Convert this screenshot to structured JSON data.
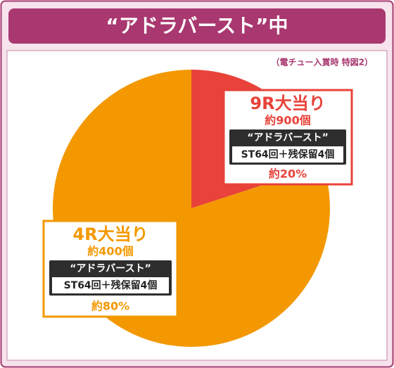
{
  "chart_data": {
    "type": "pie",
    "title": "“アドラバースト”中",
    "subtitle": "（電チュー入賞時 特図2）",
    "categories": [
      "9R大当り",
      "4R大当り"
    ],
    "values": [
      20,
      80
    ],
    "value_labels": [
      "約20%",
      "約80%"
    ],
    "colors": [
      "#e8423a",
      "#f39800"
    ],
    "payouts": [
      "約900個",
      "約400個"
    ],
    "modes": [
      "“アドラバースト”",
      "“アドラバースト”"
    ],
    "details": [
      "ST64回＋残保留4個",
      "ST64回＋残保留4個"
    ]
  }
}
